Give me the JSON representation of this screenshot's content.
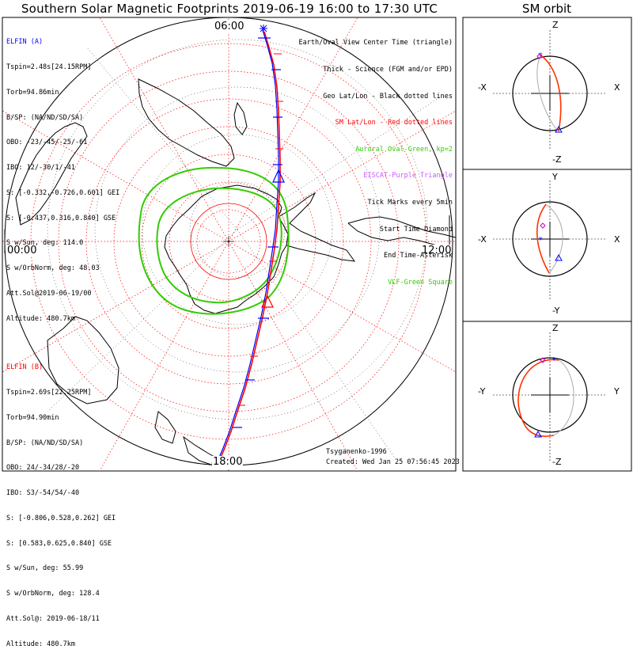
{
  "title": "Southern Solar Magnetic Footprints 2019-06-19 16:00 to 17:30 UTC",
  "sm_orbit_title": "SM orbit",
  "time_labels": {
    "top": "06:00",
    "left": "00:00",
    "right": "12:00",
    "bottom": "18:00"
  },
  "elfin_a": {
    "name": "ELFIN (A)",
    "lines": [
      "Tspin=2.48s[24.15RPM]",
      "Torb=94.86min",
      "B/SP: (NA/ND/SD/SA)",
      "OBO: -23/-45/-25/-61",
      "IBO: 12/-30/1/-41",
      "S: [-0.332,-0.726,0.601] GEI",
      "S: [-0.437,0.316,0.840] GSE",
      "S w/Sun, deg: 114.0",
      "S w/OrbNorm, deg: 48.03",
      "Att.Sol@2019-06-19/00",
      "Altitude: 480.7km"
    ]
  },
  "elfin_b": {
    "name": "ELFIN (B)",
    "lines": [
      "Tspin=2.69s[22.25RPM]",
      "Torb=94.90min",
      "B/SP: (NA/ND/SD/SA)",
      "OBO: 24/-34/28/-20",
      "IBO: S3/-54/54/-40",
      "S: [-0.806,0.528,0.262] GEI",
      "S: [0.583,0.625,0.840] GSE",
      "S w/Sun, deg: 55.99",
      "S w/OrbNorm, deg: 128.4",
      "Att.Sol@: 2019-06-18/11",
      "Altitude: 480.7km"
    ]
  },
  "legend": {
    "l1": "Earth/Oval View Center Time (triangle)",
    "l2": "Thick - Science (FGM and/or EPD)",
    "l3": "Geo Lat/Lon - Black dotted lines",
    "l4": "SM Lat/Lon - Red dotted lines",
    "l5": "Auroral Oval-Green, kp=2",
    "l6": "EISCAT-Purple Triangle",
    "l7": "Tick Marks every 5min",
    "l8": "Start Time-Diamond",
    "l9": "End Time-Asterisk",
    "l10": "VLF-Green Square"
  },
  "footer": {
    "model": "Tsyganenko-1996",
    "created": "Created: Wed Jan 25 07:56:45 2023"
  },
  "sm_panels": {
    "xz": {
      "top": "Z",
      "bottom": "-Z",
      "left": "-X",
      "right": "X"
    },
    "xy": {
      "top": "Y",
      "bottom": "-Y",
      "left": "-X",
      "right": "X"
    },
    "yz": {
      "top": "Z",
      "bottom": "-Z",
      "left": "-Y",
      "right": "Y"
    }
  },
  "colors": {
    "elfin_a": "#0000ff",
    "elfin_b": "#ff0000",
    "oval": "#33cc00",
    "sm_grid": "#ff0000",
    "geo_grid": "#000000"
  }
}
